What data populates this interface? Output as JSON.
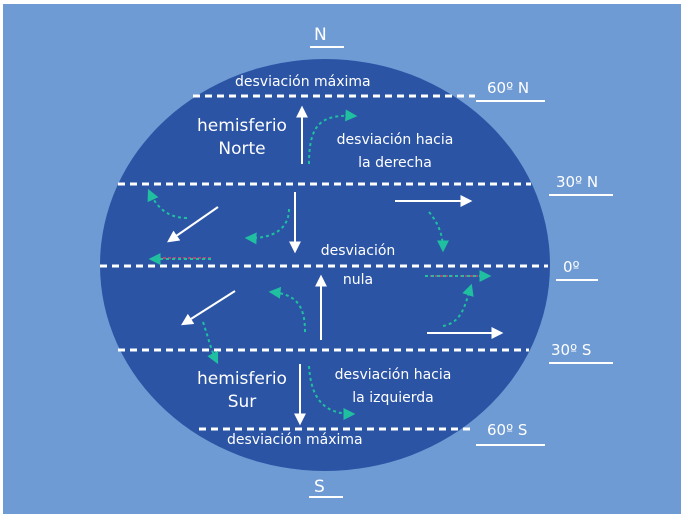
{
  "poles": {
    "north": "N",
    "south": "S"
  },
  "latitudes": {
    "n60": "60º N",
    "n30": "30º N",
    "eq": "0º",
    "s30": "30º S",
    "s60": "60º S"
  },
  "labels": {
    "max_top": "desviación máxima",
    "max_bottom": "desviación máxima",
    "hem_north_1": "hemisferio",
    "hem_north_2": "Norte",
    "hem_south_1": "hemisferio",
    "hem_south_2": "Sur",
    "right_dev_1": "desviación hacia",
    "right_dev_2": "la derecha",
    "left_dev_1": "desviación hacia",
    "left_dev_2": "la izquierda",
    "null_1": "desviación",
    "null_2": "nula"
  },
  "colors": {
    "background": "#6f9bd5",
    "globe": "#2b54a5",
    "arrow": "#ffffff",
    "deflection": "#1fbfa0",
    "reference": "#e0436b"
  }
}
